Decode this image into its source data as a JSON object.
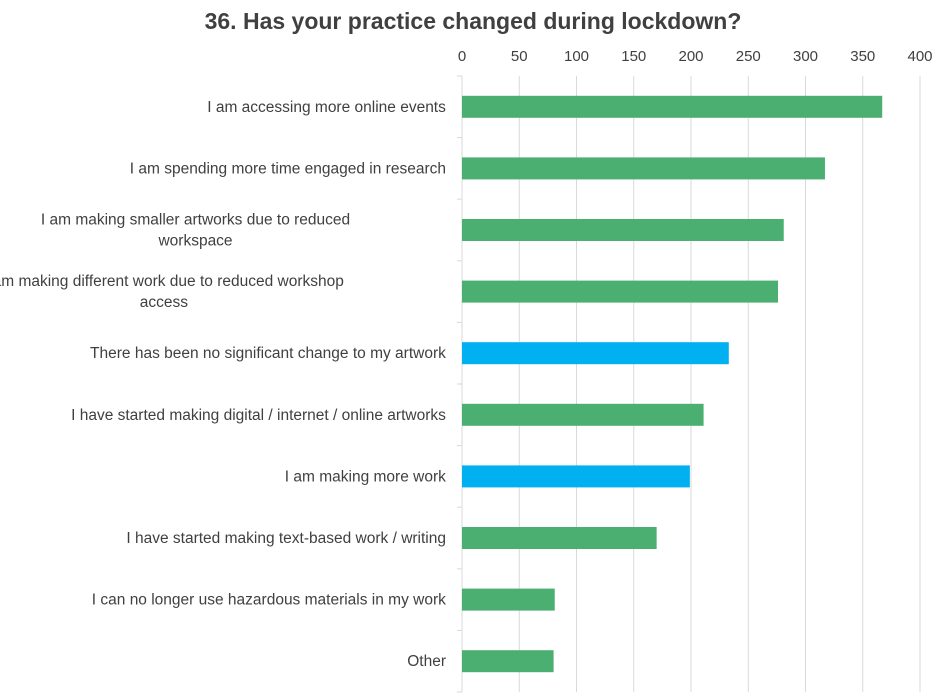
{
  "chart_data": {
    "type": "bar",
    "orientation": "horizontal",
    "title": "36. Has your practice changed during lockdown?",
    "xlabel": "",
    "ylabel": "",
    "xlim": [
      0,
      400
    ],
    "x_ticks": [
      0,
      50,
      100,
      150,
      200,
      250,
      300,
      350,
      400
    ],
    "axis_position": "top",
    "grid": true,
    "categories": [
      [
        "I am accessing more online events"
      ],
      [
        "I am spending more time engaged in research"
      ],
      [
        "I am making smaller artworks due to reduced",
        "workspace"
      ],
      [
        "I am making different work due to reduced workshop",
        "access"
      ],
      [
        "There has been no significant change to my artwork"
      ],
      [
        "I have started making digital / internet / online artworks"
      ],
      [
        "I am making more work"
      ],
      [
        "I have started making text-based work / writing"
      ],
      [
        "I can no longer use hazardous materials in my work"
      ],
      [
        "Other"
      ]
    ],
    "values": [
      367,
      317,
      281,
      276,
      233,
      211,
      199,
      170,
      81,
      80
    ],
    "bar_colors": [
      "#4caf72",
      "#4caf72",
      "#4caf72",
      "#4caf72",
      "#00b0f0",
      "#4caf72",
      "#00b0f0",
      "#4caf72",
      "#4caf72",
      "#4caf72"
    ]
  },
  "colors": {
    "green": "#4caf72",
    "blue": "#00b0f0",
    "grid": "#d9d9d9",
    "text": "#404040"
  }
}
